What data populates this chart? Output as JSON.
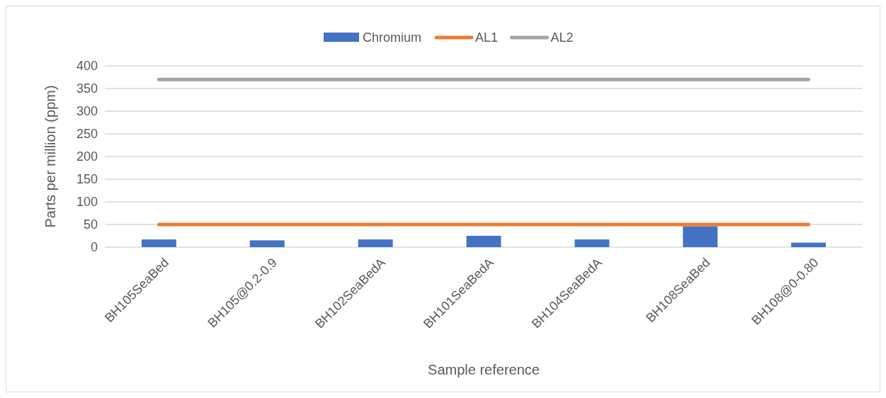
{
  "chart_data": {
    "type": "bar",
    "xlabel": "Sample reference",
    "ylabel": "Parts per million (ppm)",
    "categories": [
      "BH105SeaBed",
      "BH105@0.2-0.9",
      "BH102SeaBedA",
      "BH101SeaBedA",
      "BH104SeaBedA",
      "BH108SeaBed",
      "BH108@0-0.80"
    ],
    "series": [
      {
        "name": "Chromium",
        "color": "#4472c4",
        "values": [
          17,
          15,
          17,
          25,
          17,
          46,
          10
        ]
      },
      {
        "name": "AL1",
        "type": "line",
        "color": "#ed7d31",
        "values": [
          50,
          50,
          50,
          50,
          50,
          50,
          50
        ]
      },
      {
        "name": "AL2",
        "type": "line",
        "color": "#a5a5a5",
        "values": [
          370,
          370,
          370,
          370,
          370,
          370,
          370
        ]
      }
    ],
    "ylim": [
      0,
      400
    ],
    "yticks": [
      0,
      50,
      100,
      150,
      200,
      250,
      300,
      350,
      400
    ],
    "grid": "y",
    "legend": "top"
  }
}
